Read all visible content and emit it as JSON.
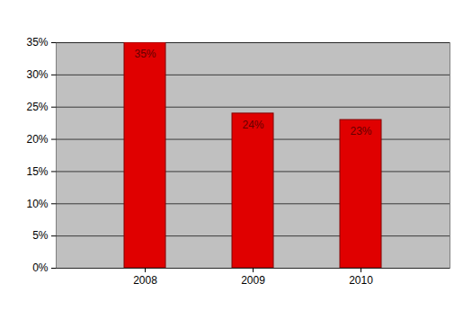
{
  "chart_data": {
    "type": "bar",
    "categories": [
      "2008",
      "2009",
      "2010"
    ],
    "values": [
      35,
      24,
      23
    ],
    "value_labels": [
      "35%",
      "24%",
      "23%"
    ],
    "data_labels": true,
    "color": "#e00000",
    "ylim": [
      0,
      35
    ],
    "yticks": [
      {
        "value": 0,
        "label": "0%"
      },
      {
        "value": 5,
        "label": "5%"
      },
      {
        "value": 10,
        "label": "10%"
      },
      {
        "value": 15,
        "label": "15%"
      },
      {
        "value": 20,
        "label": "20%"
      },
      {
        "value": 25,
        "label": "25%"
      },
      {
        "value": 30,
        "label": "30%"
      },
      {
        "value": 35,
        "label": "35%"
      }
    ],
    "grid": true
  }
}
